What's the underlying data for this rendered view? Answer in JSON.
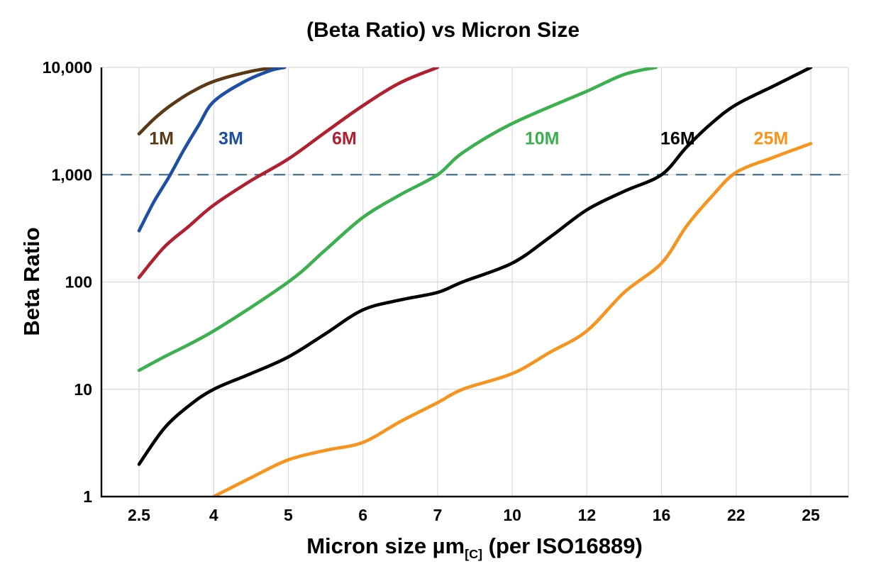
{
  "title": "(Beta Ratio) vs Micron Size",
  "y_axis_label": "Beta Ratio",
  "x_axis_label": {
    "prefix": "Micron size µm",
    "subscript": "[C]",
    "suffix": " (per ISO16889)"
  },
  "colors": {
    "background": "#ffffff",
    "grid": "#d9d9d9",
    "axis": "#000000",
    "text": "#000000"
  },
  "chart_data": {
    "type": "line",
    "title": "(Beta Ratio) vs Micron Size",
    "xlabel": "Micron size µm[C] (per ISO16889)",
    "ylabel": "Beta Ratio",
    "x_scale": "categorical-equal-spacing",
    "y_scale": "log",
    "ylim": [
      1,
      10000
    ],
    "x_ticks": [
      2.5,
      4,
      5,
      6,
      7,
      10,
      12,
      16,
      22,
      25
    ],
    "x_tick_labels": [
      "2.5",
      "4",
      "5",
      "6",
      "7",
      "10",
      "12",
      "16",
      "22",
      "25"
    ],
    "y_ticks": [
      1,
      10,
      100,
      1000,
      10000
    ],
    "y_tick_labels": [
      "1",
      "10",
      "100",
      "1,000",
      "10,000"
    ],
    "grid": true,
    "legend_position": "inline-labels",
    "reference_line": {
      "y": 1000,
      "style": "dashed",
      "color": "#46718e"
    },
    "series": [
      {
        "name": "1M",
        "color": "#5a3a16",
        "label_pos": {
          "x": 2.95,
          "y": 2200
        },
        "points": [
          [
            2.5,
            2400
          ],
          [
            2.8,
            3300
          ],
          [
            3.1,
            4300
          ],
          [
            3.5,
            5700
          ],
          [
            4,
            7400
          ],
          [
            4.5,
            9200
          ],
          [
            4.85,
            10000
          ]
        ]
      },
      {
        "name": "3M",
        "color": "#1d4fa4",
        "label_pos": {
          "x": 4.23,
          "y": 2200
        },
        "points": [
          [
            2.5,
            300
          ],
          [
            2.8,
            560
          ],
          [
            3.1,
            950
          ],
          [
            3.4,
            1700
          ],
          [
            3.7,
            2900
          ],
          [
            4,
            4800
          ],
          [
            4.4,
            7300
          ],
          [
            4.75,
            9300
          ],
          [
            4.95,
            10000
          ]
        ]
      },
      {
        "name": "6M",
        "color": "#b0202f",
        "label_pos": {
          "x": 5.75,
          "y": 2200
        },
        "points": [
          [
            2.5,
            110
          ],
          [
            3,
            210
          ],
          [
            3.5,
            330
          ],
          [
            4,
            520
          ],
          [
            4.5,
            880
          ],
          [
            5,
            1400
          ],
          [
            5.5,
            2500
          ],
          [
            6,
            4400
          ],
          [
            6.5,
            7200
          ],
          [
            7,
            10000
          ]
        ]
      },
      {
        "name": "10M",
        "color": "#3cb04e",
        "label_pos": {
          "x": 10.8,
          "y": 2200
        },
        "points": [
          [
            2.5,
            15
          ],
          [
            3,
            20
          ],
          [
            4,
            35
          ],
          [
            5,
            100
          ],
          [
            5.5,
            200
          ],
          [
            6,
            400
          ],
          [
            6.5,
            650
          ],
          [
            7,
            1000
          ],
          [
            8,
            1600
          ],
          [
            10,
            3000
          ],
          [
            12,
            6000
          ],
          [
            14,
            8600
          ],
          [
            15.7,
            10000
          ]
        ]
      },
      {
        "name": "16M",
        "color": "#000000",
        "label_pos": {
          "x": 17.3,
          "y": 2200
        },
        "points": [
          [
            2.5,
            2
          ],
          [
            3,
            4.3
          ],
          [
            3.5,
            7
          ],
          [
            4,
            10
          ],
          [
            4.5,
            14
          ],
          [
            5,
            20
          ],
          [
            5.5,
            33
          ],
          [
            6,
            55
          ],
          [
            6.5,
            68
          ],
          [
            7,
            80
          ],
          [
            8,
            100
          ],
          [
            10,
            150
          ],
          [
            11,
            260
          ],
          [
            12,
            470
          ],
          [
            14,
            700
          ],
          [
            16,
            1000
          ],
          [
            18,
            1800
          ],
          [
            20,
            3000
          ],
          [
            22,
            4500
          ],
          [
            23.5,
            6700
          ],
          [
            25,
            10000
          ]
        ]
      },
      {
        "name": "25M",
        "color": "#f7941d",
        "label_pos": {
          "x": 23.4,
          "y": 2200
        },
        "points": [
          [
            4,
            1
          ],
          [
            4.5,
            1.5
          ],
          [
            5,
            2.2
          ],
          [
            5.5,
            2.7
          ],
          [
            6,
            3.2
          ],
          [
            6.5,
            5
          ],
          [
            7,
            7.5
          ],
          [
            8,
            10
          ],
          [
            10,
            14
          ],
          [
            11,
            22
          ],
          [
            12,
            35
          ],
          [
            14,
            80
          ],
          [
            16,
            150
          ],
          [
            18,
            330
          ],
          [
            20,
            620
          ],
          [
            22,
            1050
          ],
          [
            23.5,
            1450
          ],
          [
            25,
            1950
          ]
        ]
      }
    ]
  }
}
